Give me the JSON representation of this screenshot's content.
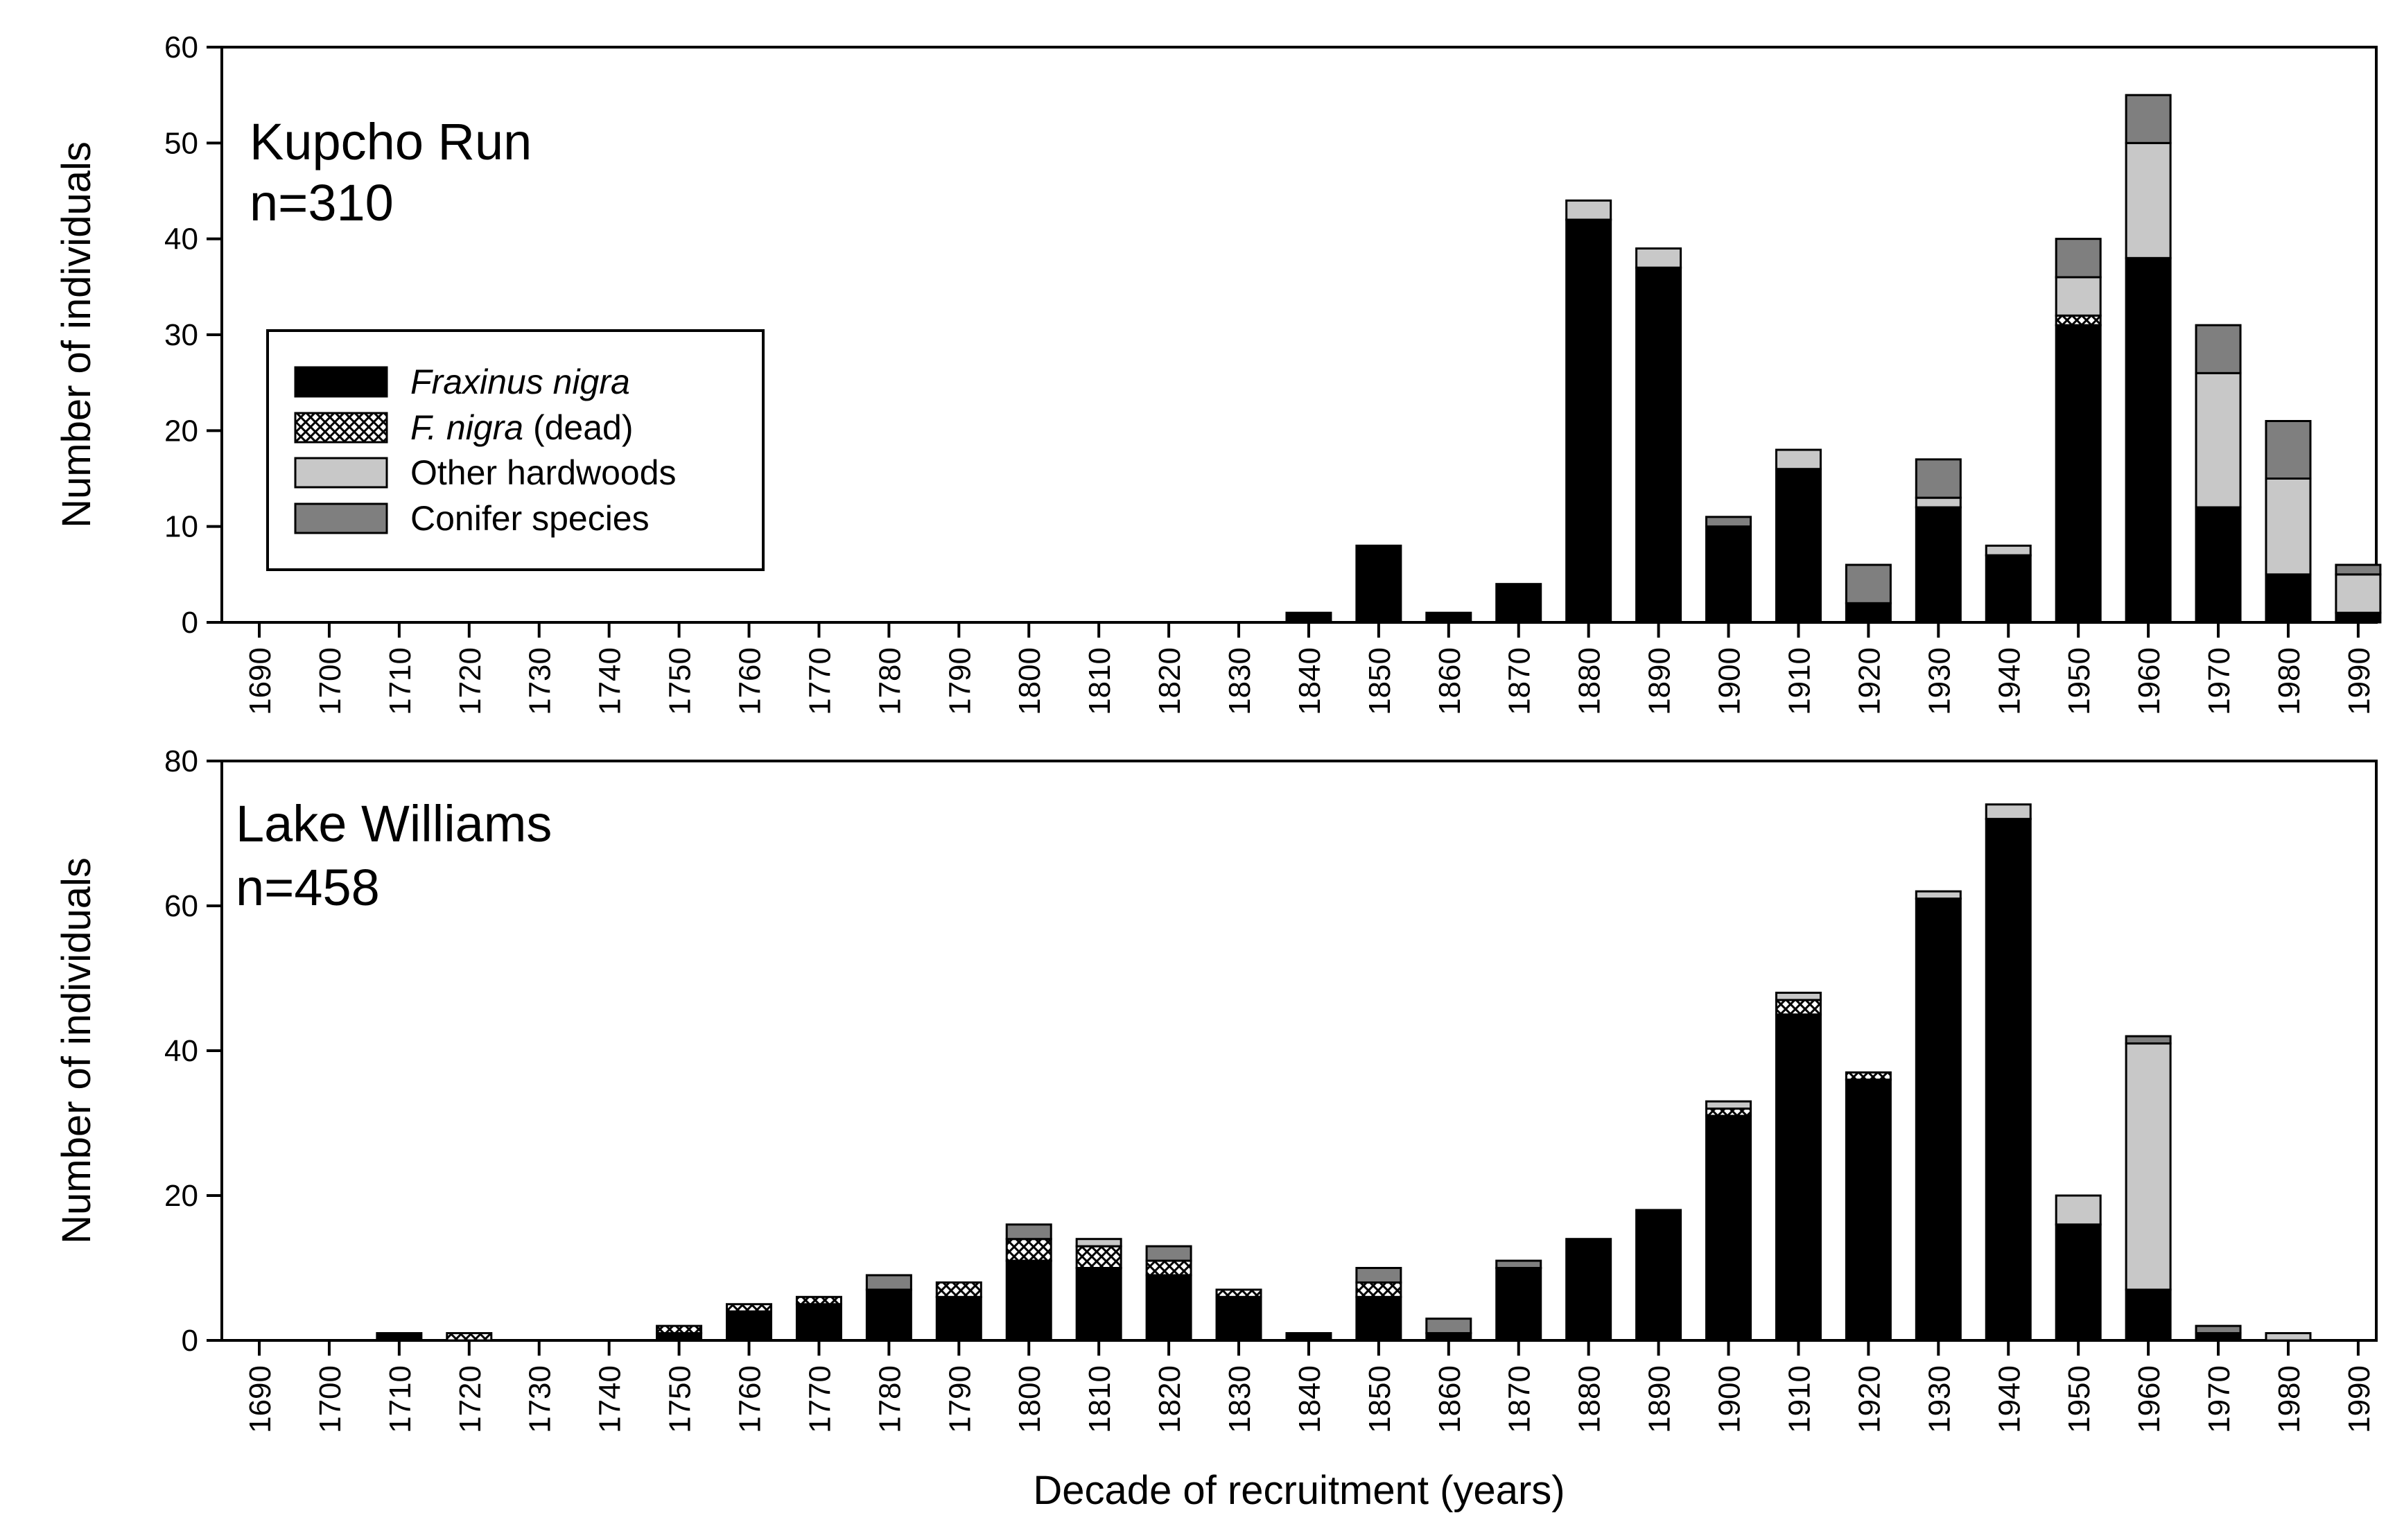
{
  "chart_data": [
    {
      "type": "bar",
      "stacked": true,
      "title": "Kupcho Run",
      "sample_size": "n=310",
      "xlabel": "",
      "ylabel": "Number of individuals",
      "ylim": [
        0,
        60
      ],
      "yticks": [
        "0",
        "10",
        "20",
        "30",
        "40",
        "50",
        "60"
      ],
      "categories": [
        "1690",
        "1700",
        "1710",
        "1720",
        "1730",
        "1740",
        "1750",
        "1760",
        "1770",
        "1780",
        "1790",
        "1800",
        "1810",
        "1820",
        "1830",
        "1840",
        "1850",
        "1860",
        "1870",
        "1880",
        "1890",
        "1900",
        "1910",
        "1920",
        "1930",
        "1940",
        "1950",
        "1960",
        "1970",
        "1980",
        "1990"
      ],
      "series": [
        {
          "name": "Fraxinus nigra",
          "values": [
            0,
            0,
            0,
            0,
            0,
            0,
            0,
            0,
            0,
            0,
            0,
            0,
            0,
            0,
            0,
            1,
            8,
            1,
            4,
            42,
            37,
            10,
            16,
            2,
            12,
            7,
            31,
            38,
            12,
            5,
            1
          ]
        },
        {
          "name": "F. nigra (dead)",
          "values": [
            0,
            0,
            0,
            0,
            0,
            0,
            0,
            0,
            0,
            0,
            0,
            0,
            0,
            0,
            0,
            0,
            0,
            0,
            0,
            0,
            0,
            0,
            0,
            0,
            0,
            0,
            1,
            0,
            0,
            0,
            0
          ]
        },
        {
          "name": "Other hardwoods",
          "values": [
            0,
            0,
            0,
            0,
            0,
            0,
            0,
            0,
            0,
            0,
            0,
            0,
            0,
            0,
            0,
            0,
            0,
            0,
            0,
            2,
            2,
            0,
            2,
            0,
            1,
            1,
            4,
            12,
            14,
            10,
            4
          ]
        },
        {
          "name": "Conifer species",
          "values": [
            0,
            0,
            0,
            0,
            0,
            0,
            0,
            0,
            0,
            0,
            0,
            0,
            0,
            0,
            0,
            0,
            0,
            0,
            0,
            0,
            0,
            1,
            0,
            4,
            4,
            0,
            4,
            5,
            5,
            6,
            1
          ]
        }
      ]
    },
    {
      "type": "bar",
      "stacked": true,
      "title": "Lake Williams",
      "sample_size": "n=458",
      "xlabel": "Decade of recruitment (years)",
      "ylabel": "Number of individuals",
      "ylim": [
        0,
        80
      ],
      "yticks": [
        "0",
        "20",
        "40",
        "60",
        "80"
      ],
      "categories": [
        "1690",
        "1700",
        "1710",
        "1720",
        "1730",
        "1740",
        "1750",
        "1760",
        "1770",
        "1780",
        "1790",
        "1800",
        "1810",
        "1820",
        "1830",
        "1840",
        "1850",
        "1860",
        "1870",
        "1880",
        "1890",
        "1900",
        "1910",
        "1920",
        "1930",
        "1940",
        "1950",
        "1960",
        "1970",
        "1980",
        "1990"
      ],
      "series": [
        {
          "name": "Fraxinus nigra",
          "values": [
            0,
            0,
            1,
            0,
            0,
            0,
            1,
            4,
            5,
            7,
            6,
            11,
            10,
            9,
            6,
            1,
            6,
            1,
            10,
            14,
            18,
            31,
            45,
            36,
            61,
            72,
            16,
            7,
            1,
            0,
            0
          ]
        },
        {
          "name": "F. nigra (dead)",
          "values": [
            0,
            0,
            0,
            1,
            0,
            0,
            1,
            1,
            1,
            0,
            2,
            3,
            3,
            2,
            1,
            0,
            2,
            0,
            0,
            0,
            0,
            1,
            2,
            1,
            0,
            0,
            0,
            0,
            0,
            0,
            0
          ]
        },
        {
          "name": "Other hardwoods",
          "values": [
            0,
            0,
            0,
            0,
            0,
            0,
            0,
            0,
            0,
            0,
            0,
            0,
            1,
            0,
            0,
            0,
            0,
            0,
            0,
            0,
            0,
            1,
            1,
            0,
            1,
            2,
            4,
            34,
            0,
            1,
            0
          ]
        },
        {
          "name": "Conifer species",
          "values": [
            0,
            0,
            0,
            0,
            0,
            0,
            0,
            0,
            0,
            2,
            0,
            2,
            0,
            2,
            0,
            0,
            2,
            2,
            1,
            0,
            0,
            0,
            0,
            0,
            0,
            0,
            0,
            1,
            1,
            0,
            0
          ]
        }
      ]
    }
  ],
  "legend": {
    "items": [
      {
        "key": "fraxinus",
        "name": "Fraxinus nigra",
        "rest": "",
        "italic": true
      },
      {
        "key": "dead",
        "name": "F. nigra",
        "rest": " (dead)",
        "italic": true
      },
      {
        "key": "hardwood",
        "name": "Other hardwoods",
        "rest": "",
        "italic": false
      },
      {
        "key": "conifer",
        "name": "Conifer species",
        "rest": "",
        "italic": false
      }
    ]
  },
  "colors": {
    "fraxinus": "#000000",
    "dead": "#ffffff",
    "hardwood": "#c8c8c8",
    "conifer": "#7f7f7f",
    "axis": "#000000"
  }
}
